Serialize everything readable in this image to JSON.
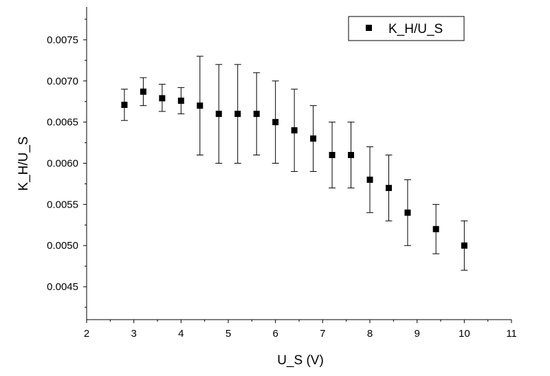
{
  "chart_data": {
    "type": "scatter",
    "title": "",
    "xlabel": "U_S (V)",
    "ylabel": "K_H/U_S",
    "xlim": [
      2,
      11
    ],
    "ylim": [
      0.0041,
      0.0079
    ],
    "xticks": [
      "2",
      "3",
      "4",
      "5",
      "6",
      "7",
      "8",
      "9",
      "10",
      "11"
    ],
    "yticks": [
      "0.0045",
      "0.0050",
      "0.0055",
      "0.0060",
      "0.0065",
      "0.0070",
      "0.0075"
    ],
    "grid": false,
    "legend_position": "top-right",
    "series": [
      {
        "name": "K_H/U_S",
        "marker": "square",
        "color": "#000000",
        "x": [
          2.8,
          3.2,
          3.6,
          4.0,
          4.4,
          4.8,
          5.2,
          5.6,
          6.0,
          6.4,
          6.8,
          7.2,
          7.6,
          8.0,
          8.4,
          8.8,
          9.4,
          10.0
        ],
        "y": [
          0.00671,
          0.00687,
          0.00679,
          0.00676,
          0.0067,
          0.0066,
          0.0066,
          0.0066,
          0.0065,
          0.0064,
          0.0063,
          0.0061,
          0.0061,
          0.0058,
          0.0057,
          0.0054,
          0.0052,
          0.005
        ],
        "y_err_low": [
          0.00652,
          0.0067,
          0.00663,
          0.0066,
          0.0061,
          0.006,
          0.006,
          0.0061,
          0.006,
          0.0059,
          0.0059,
          0.0057,
          0.0057,
          0.0054,
          0.0053,
          0.005,
          0.0049,
          0.0047
        ],
        "y_err_high": [
          0.0069,
          0.00704,
          0.00696,
          0.00692,
          0.0073,
          0.0072,
          0.0072,
          0.0071,
          0.007,
          0.0069,
          0.0067,
          0.0065,
          0.0065,
          0.0062,
          0.0061,
          0.0058,
          0.0055,
          0.0053
        ]
      }
    ]
  }
}
